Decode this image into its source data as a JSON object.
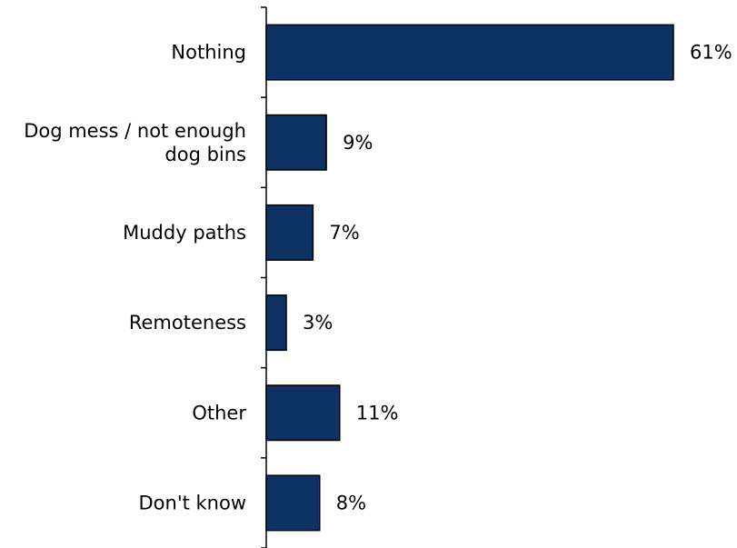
{
  "chart_data": {
    "type": "bar",
    "orientation": "horizontal",
    "categories": [
      [
        "Nothing"
      ],
      [
        "Dog mess /  not enough",
        "dog bins"
      ],
      [
        "Muddy paths"
      ],
      [
        "Remoteness"
      ],
      [
        "Other"
      ],
      [
        "Don't know"
      ]
    ],
    "values": [
      61,
      9,
      7,
      3,
      11,
      8
    ],
    "value_labels": [
      "61%",
      "9%",
      "7%",
      "3%",
      "11%",
      "8%"
    ],
    "xlim": [
      0,
      61
    ],
    "grid": false,
    "legend": "none",
    "bar_color": "#0d3263"
  }
}
